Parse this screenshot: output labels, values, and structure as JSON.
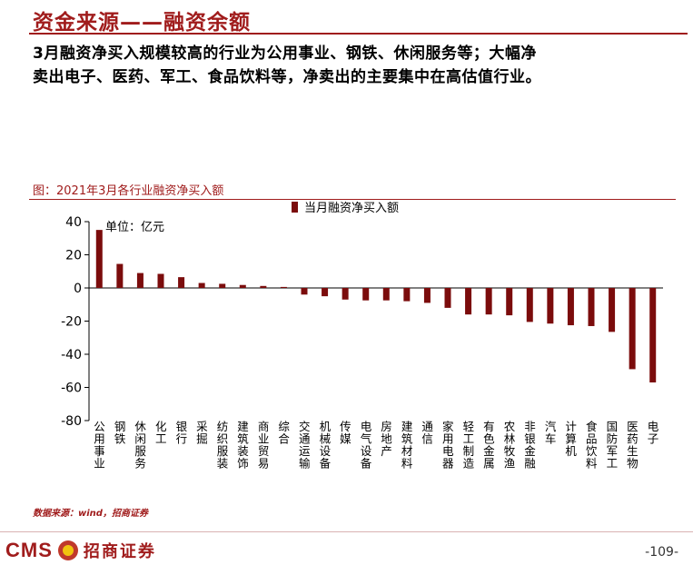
{
  "header": {
    "title": "资金来源——融资余额",
    "intro_line1": "3月融资净买入规模较高的行业为公用事业、钢铁、休闲服务等；大幅净",
    "intro_line2": "卖出电子、医药、军工、食品饮料等，净卖出的主要集中在高估值行业。"
  },
  "figure": {
    "title": "图：2021年3月各行业融资净买入额"
  },
  "chart_data": {
    "type": "bar",
    "title": "图：2021年3月各行业融资净买入额",
    "unit_label": "单位：亿元",
    "legend_position": "top-center",
    "ylim": [
      -80,
      40
    ],
    "yticks": [
      40,
      20,
      0,
      -20,
      -40,
      -60,
      -80
    ],
    "grid": false,
    "categories": [
      "公用事业",
      "钢铁",
      "休闲服务",
      "化工",
      "银行",
      "采掘",
      "纺织服装",
      "建筑装饰",
      "商业贸易",
      "综合",
      "交通运输",
      "机械设备",
      "传媒",
      "电气设备",
      "房地产",
      "建筑材料",
      "通信",
      "家用电器",
      "轻工制造",
      "有色金属",
      "农林牧渔",
      "非银金融",
      "汽车",
      "计算机",
      "食品饮料",
      "国防军工",
      "医药生物",
      "电子"
    ],
    "series": [
      {
        "name": "当月融资净买入额",
        "color": "#7b0c0c",
        "values": [
          35,
          14.5,
          9,
          8.5,
          6.5,
          3,
          2.5,
          1.8,
          1.2,
          0.6,
          -4,
          -5,
          -7,
          -7.5,
          -7.5,
          -8,
          -9,
          -12,
          -16,
          -16,
          -16.5,
          -20.5,
          -21.5,
          -22.5,
          -23,
          -26.5,
          -49,
          -57
        ]
      }
    ]
  },
  "footer": {
    "source": "数据来源：wind，招商证券",
    "logo_text": "CMS",
    "logo_cn": "招商证券",
    "page_number": "-109-"
  }
}
